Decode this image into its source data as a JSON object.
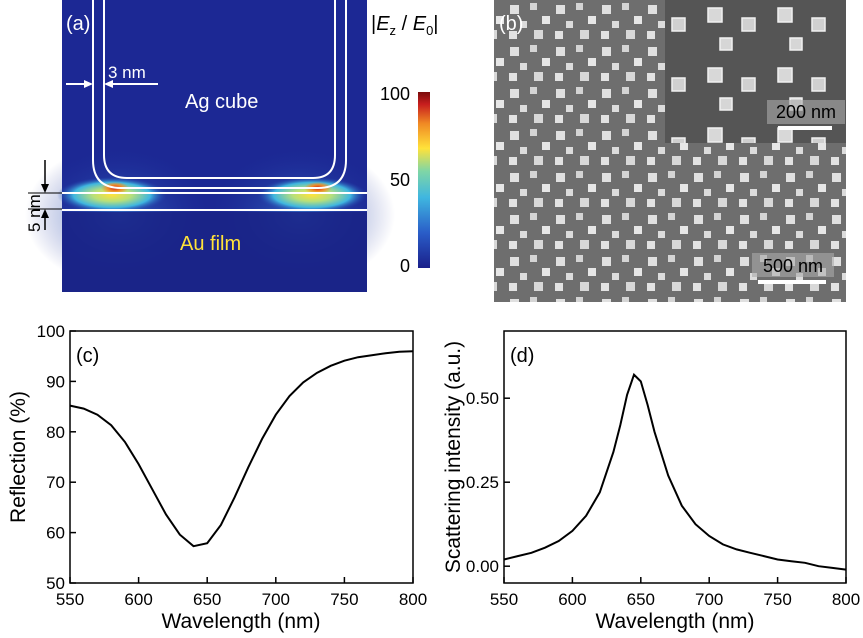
{
  "panel_a": {
    "label": "(a)",
    "cube_label": "Ag cube",
    "film_label": "Au film",
    "gap_dimension": "3 nm",
    "film_gap_dimension": "5 nm",
    "colorbar_title": "|E_z / E_0|",
    "colorbar_ticks": [
      "100",
      "50",
      "0"
    ],
    "colormap": [
      "#1a1f8a",
      "#2a5dc8",
      "#3fb6e0",
      "#7fd6a6",
      "#ffe23a",
      "#f08a24",
      "#c81e1e",
      "#7a0b0b"
    ]
  },
  "panel_b": {
    "label": "(b)",
    "inset_scalebar": "200 nm",
    "main_scalebar": "500 nm"
  },
  "chart_data": [
    {
      "type": "line",
      "panel_label": "(c)",
      "xlabel": "Wavelength (nm)",
      "ylabel": "Reflection (%)",
      "xlim": [
        550,
        800
      ],
      "ylim": [
        50,
        100
      ],
      "xticks": [
        550,
        600,
        650,
        700,
        750,
        800
      ],
      "yticks": [
        50,
        60,
        70,
        80,
        90,
        100
      ],
      "grid": false,
      "series": [
        {
          "x": [
            550,
            560,
            570,
            580,
            590,
            600,
            610,
            620,
            630,
            640,
            650,
            660,
            670,
            680,
            690,
            700,
            710,
            720,
            730,
            740,
            750,
            760,
            770,
            780,
            790,
            800
          ],
          "y": [
            85.2,
            84.6,
            83.4,
            81.3,
            78.0,
            73.6,
            68.6,
            63.6,
            59.6,
            57.3,
            57.9,
            61.5,
            67.0,
            73.0,
            78.6,
            83.4,
            87.1,
            89.8,
            91.7,
            93.1,
            94.1,
            94.8,
            95.2,
            95.6,
            95.9,
            96.0
          ]
        }
      ]
    },
    {
      "type": "line",
      "panel_label": "(d)",
      "xlabel": "Wavelength (nm)",
      "ylabel": "Scattering intensity (a.u.)",
      "xlim": [
        550,
        800
      ],
      "ylim": [
        -0.05,
        0.7
      ],
      "xticks": [
        550,
        600,
        650,
        700,
        750,
        800
      ],
      "ytick_labels": [
        "0.00",
        "0.25",
        "0.50"
      ],
      "yticks": [
        0.0,
        0.25,
        0.5
      ],
      "grid": false,
      "series": [
        {
          "x": [
            550,
            560,
            570,
            580,
            590,
            600,
            610,
            620,
            630,
            635,
            640,
            645,
            650,
            655,
            660,
            670,
            680,
            690,
            700,
            710,
            720,
            730,
            740,
            750,
            760,
            770,
            780,
            790,
            800
          ],
          "y": [
            0.02,
            0.03,
            0.04,
            0.055,
            0.075,
            0.105,
            0.15,
            0.22,
            0.34,
            0.42,
            0.51,
            0.57,
            0.55,
            0.48,
            0.4,
            0.27,
            0.18,
            0.125,
            0.09,
            0.065,
            0.05,
            0.04,
            0.03,
            0.02,
            0.015,
            0.01,
            0.0,
            -0.005,
            -0.01
          ]
        }
      ]
    }
  ]
}
